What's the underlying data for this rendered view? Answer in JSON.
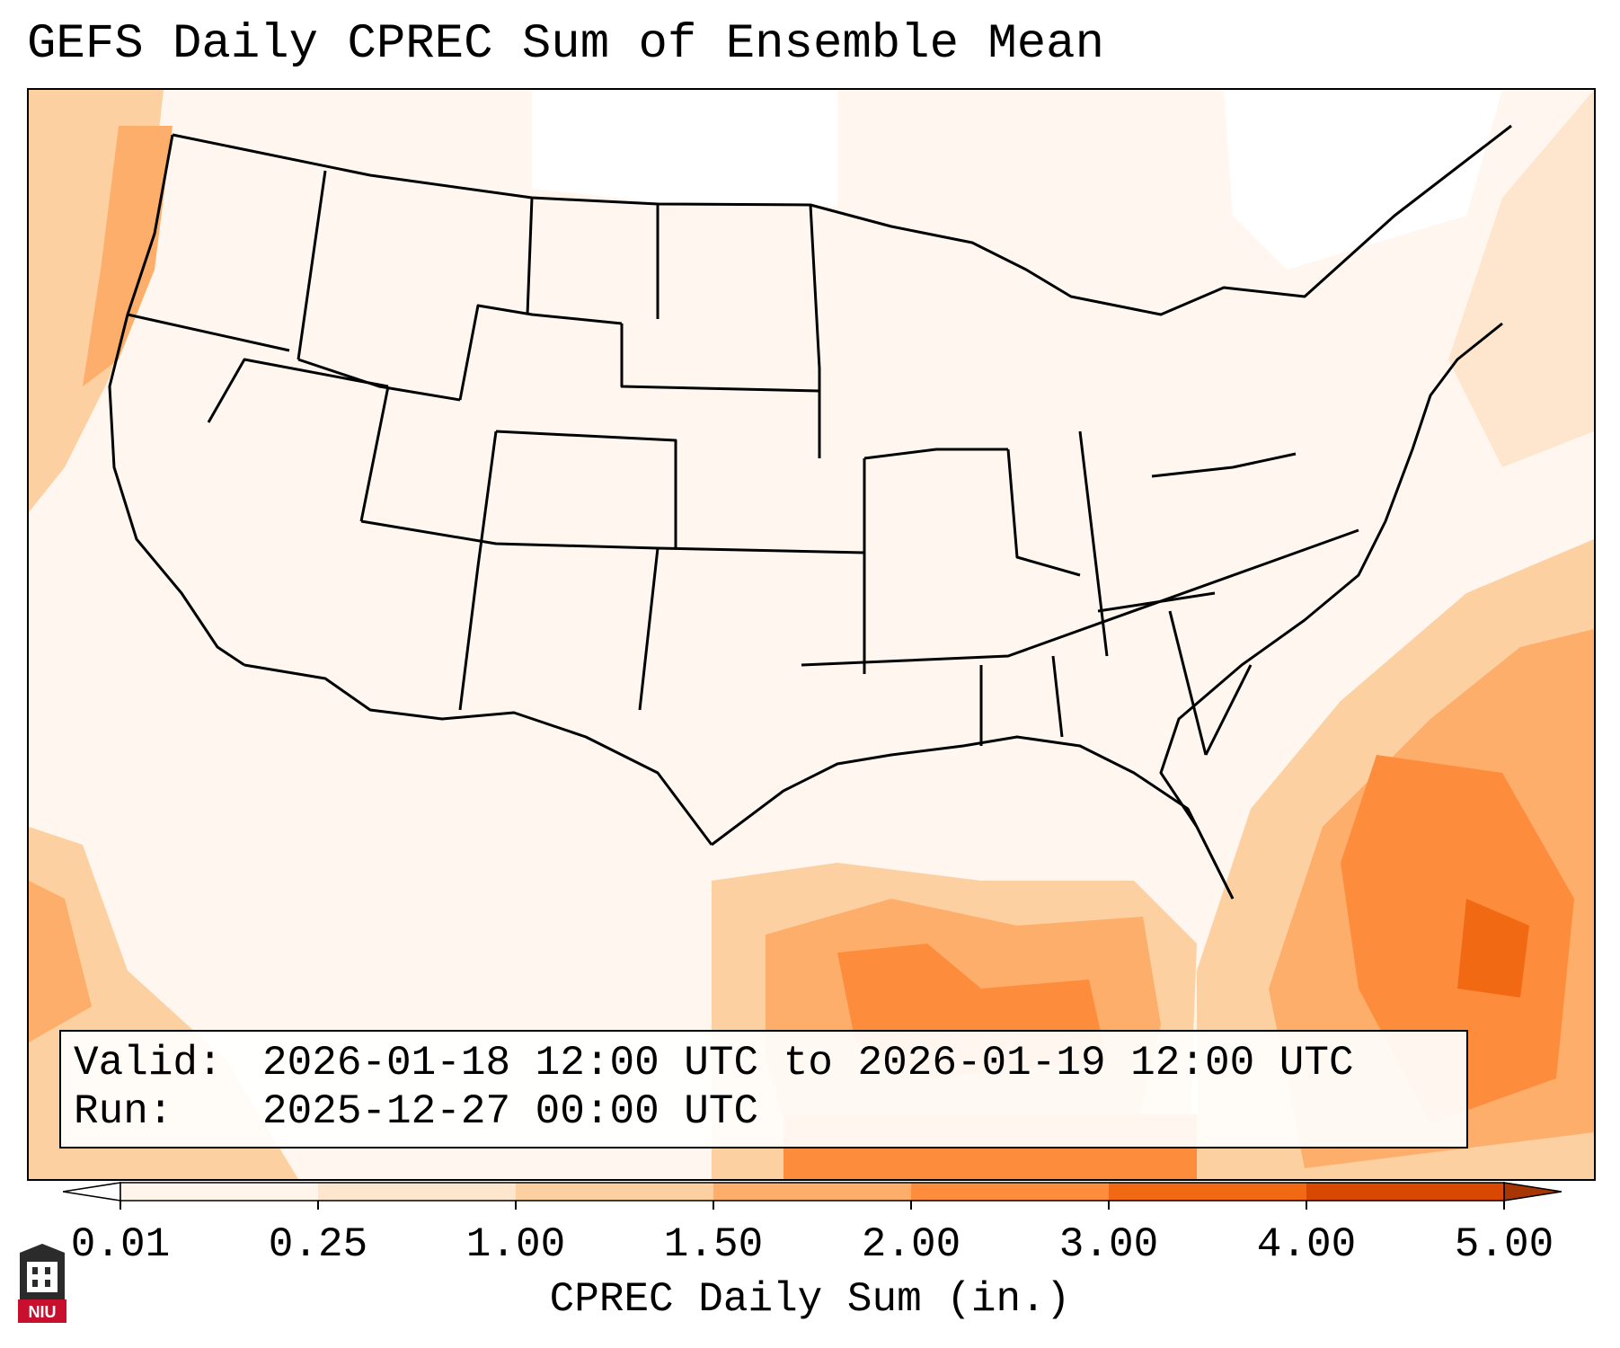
{
  "title": "GEFS Daily CPREC Sum of Ensemble Mean",
  "info": {
    "valid_label": "Valid:",
    "valid_value": "2026-01-18 12:00 UTC to 2026-01-19 12:00 UTC",
    "run_label": "Run:",
    "run_value": "2025-12-27 00:00 UTC"
  },
  "colorbar": {
    "label": "CPREC Daily Sum (in.)",
    "ticks": [
      "0.01",
      "0.25",
      "1.00",
      "1.50",
      "2.00",
      "3.00",
      "4.00",
      "5.00"
    ],
    "colors": [
      "#fff5eb",
      "#fee6ce",
      "#fdd0a2",
      "#fdae6b",
      "#fd8d3c",
      "#f16913",
      "#d94801"
    ],
    "under_color": "#ffffff",
    "over_color": "#a63603",
    "extend": "both"
  },
  "logo": {
    "text": "NIU"
  },
  "map": {
    "projection": "lambert-conformal",
    "region": "CONUS",
    "field": "CPREC",
    "features": [
      "coastlines",
      "state-borders",
      "country-borders"
    ],
    "precip_pattern": "light amounts over most of the US; heavier amounts over Gulf of Mexico, Atlantic off the Southeast coast and Pacific off the West Coast"
  },
  "colors": {
    "background": "#ffffff",
    "border": "#000000",
    "light_fill": "#fff7ef"
  }
}
